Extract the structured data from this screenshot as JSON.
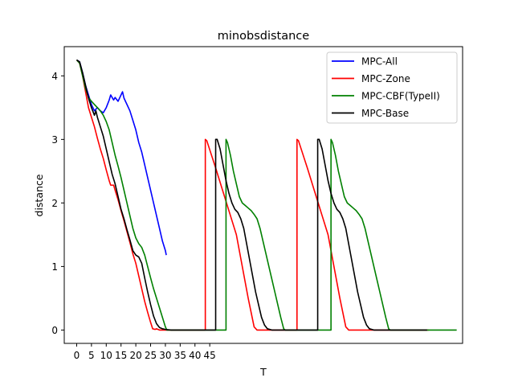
{
  "chart_data": {
    "type": "line",
    "title": "minobsdistance",
    "xlabel": "T",
    "ylabel": "distance",
    "xlim": [
      -4.2,
      130.5
    ],
    "ylim": [
      -0.21,
      4.46
    ],
    "x_ticks": [
      0,
      5,
      10,
      15,
      20,
      25,
      30,
      35,
      40,
      45
    ],
    "x_tick_labels": [
      "0",
      "5",
      "10",
      "15",
      "20",
      "25",
      "30",
      "35",
      "40",
      "45"
    ],
    "y_ticks": [
      0,
      1,
      2,
      3,
      4
    ],
    "y_tick_labels": [
      "0",
      "1",
      "2",
      "3",
      "4"
    ],
    "grid": false,
    "legend_position": "top-right",
    "series": [
      {
        "name": "MPC-All",
        "color": "#0000ff",
        "points": [
          [
            0,
            4.25
          ],
          [
            1,
            4.22
          ],
          [
            2,
            4.05
          ],
          [
            3,
            3.85
          ],
          [
            4,
            3.7
          ],
          [
            5,
            3.55
          ],
          [
            6,
            3.45
          ],
          [
            7,
            3.5
          ],
          [
            8,
            3.45
          ],
          [
            9,
            3.42
          ],
          [
            10,
            3.5
          ],
          [
            11,
            3.62
          ],
          [
            11.5,
            3.7
          ],
          [
            12.5,
            3.62
          ],
          [
            13,
            3.66
          ],
          [
            14,
            3.6
          ],
          [
            15,
            3.7
          ],
          [
            15.5,
            3.75
          ],
          [
            16,
            3.65
          ],
          [
            17,
            3.55
          ],
          [
            18,
            3.45
          ],
          [
            19,
            3.3
          ],
          [
            20,
            3.15
          ],
          [
            21,
            2.95
          ],
          [
            22,
            2.8
          ],
          [
            23,
            2.6
          ],
          [
            24,
            2.4
          ],
          [
            25,
            2.2
          ],
          [
            26,
            2.0
          ],
          [
            27,
            1.8
          ],
          [
            28,
            1.6
          ],
          [
            29,
            1.4
          ],
          [
            30,
            1.25
          ],
          [
            30.3,
            1.18
          ]
        ]
      },
      {
        "name": "MPC-Zone",
        "color": "#ff0000",
        "points": [
          [
            0,
            4.25
          ],
          [
            1,
            4.2
          ],
          [
            2,
            4.0
          ],
          [
            3,
            3.75
          ],
          [
            4,
            3.5
          ],
          [
            5,
            3.35
          ],
          [
            6,
            3.2
          ],
          [
            7,
            3.02
          ],
          [
            8,
            2.85
          ],
          [
            9,
            2.7
          ],
          [
            10,
            2.52
          ],
          [
            11,
            2.35
          ],
          [
            11.5,
            2.28
          ],
          [
            12.5,
            2.28
          ],
          [
            13,
            2.2
          ],
          [
            14,
            2.05
          ],
          [
            15,
            1.88
          ],
          [
            16,
            1.72
          ],
          [
            17,
            1.55
          ],
          [
            18,
            1.38
          ],
          [
            19,
            1.2
          ],
          [
            20,
            1.05
          ],
          [
            21,
            0.85
          ],
          [
            22,
            0.65
          ],
          [
            23,
            0.45
          ],
          [
            24,
            0.28
          ],
          [
            25,
            0.12
          ],
          [
            25.7,
            0.02
          ],
          [
            26.5,
            0.01
          ],
          [
            27,
            0.02
          ],
          [
            28,
            0.0
          ],
          [
            43.5,
            0.0
          ],
          [
            43.5,
            3.0
          ],
          [
            44,
            2.98
          ],
          [
            47,
            2.55
          ],
          [
            50,
            2.1
          ],
          [
            52,
            1.8
          ],
          [
            54,
            1.5
          ],
          [
            56,
            1.0
          ],
          [
            58,
            0.5
          ],
          [
            60,
            0.05
          ],
          [
            61,
            0.0
          ],
          [
            74.5,
            0.0
          ],
          [
            74.5,
            3.0
          ],
          [
            75,
            2.98
          ],
          [
            78,
            2.55
          ],
          [
            81,
            2.1
          ],
          [
            83,
            1.8
          ],
          [
            85,
            1.5
          ],
          [
            87,
            1.0
          ],
          [
            89,
            0.5
          ],
          [
            91,
            0.05
          ],
          [
            92,
            0.0
          ],
          [
            119,
            0.0
          ]
        ]
      },
      {
        "name": "MPC-CBF(TypeII)",
        "color": "#008000",
        "points": [
          [
            0,
            4.25
          ],
          [
            1,
            4.2
          ],
          [
            2,
            4.0
          ],
          [
            3,
            3.8
          ],
          [
            4,
            3.66
          ],
          [
            5,
            3.6
          ],
          [
            6,
            3.55
          ],
          [
            7,
            3.5
          ],
          [
            8,
            3.45
          ],
          [
            9,
            3.38
          ],
          [
            10,
            3.28
          ],
          [
            11,
            3.15
          ],
          [
            12,
            2.95
          ],
          [
            13,
            2.75
          ],
          [
            14,
            2.58
          ],
          [
            15,
            2.4
          ],
          [
            16,
            2.2
          ],
          [
            17,
            2.0
          ],
          [
            18,
            1.8
          ],
          [
            19,
            1.6
          ],
          [
            20,
            1.45
          ],
          [
            21,
            1.36
          ],
          [
            22,
            1.3
          ],
          [
            23,
            1.18
          ],
          [
            24,
            1.0
          ],
          [
            25,
            0.82
          ],
          [
            26,
            0.65
          ],
          [
            27,
            0.5
          ],
          [
            28,
            0.35
          ],
          [
            29,
            0.2
          ],
          [
            30,
            0.05
          ],
          [
            30.5,
            0.0
          ],
          [
            50.5,
            0.0
          ],
          [
            50.5,
            3.0
          ],
          [
            51,
            2.95
          ],
          [
            52,
            2.75
          ],
          [
            53,
            2.5
          ],
          [
            54,
            2.3
          ],
          [
            55,
            2.1
          ],
          [
            56,
            2.0
          ],
          [
            57,
            1.96
          ],
          [
            58,
            1.92
          ],
          [
            59,
            1.88
          ],
          [
            60,
            1.82
          ],
          [
            61,
            1.75
          ],
          [
            62,
            1.6
          ],
          [
            63,
            1.4
          ],
          [
            64,
            1.2
          ],
          [
            65,
            1.0
          ],
          [
            66,
            0.8
          ],
          [
            67,
            0.6
          ],
          [
            68,
            0.4
          ],
          [
            69,
            0.2
          ],
          [
            70,
            0.02
          ],
          [
            70.5,
            0.0
          ],
          [
            86,
            0.0
          ],
          [
            86,
            3.0
          ],
          [
            86.5,
            2.95
          ],
          [
            87.5,
            2.75
          ],
          [
            88.5,
            2.5
          ],
          [
            89.5,
            2.3
          ],
          [
            90.5,
            2.1
          ],
          [
            91.5,
            2.0
          ],
          [
            92.5,
            1.96
          ],
          [
            93.5,
            1.92
          ],
          [
            94.5,
            1.88
          ],
          [
            95.5,
            1.82
          ],
          [
            96.5,
            1.75
          ],
          [
            97.5,
            1.6
          ],
          [
            98.5,
            1.4
          ],
          [
            99.5,
            1.2
          ],
          [
            100.5,
            1.0
          ],
          [
            101.5,
            0.8
          ],
          [
            102.5,
            0.6
          ],
          [
            103.5,
            0.4
          ],
          [
            104.5,
            0.2
          ],
          [
            105.5,
            0.02
          ],
          [
            106,
            0.0
          ],
          [
            128.5,
            0.0
          ]
        ]
      },
      {
        "name": "MPC-Base",
        "color": "#000000",
        "points": [
          [
            0,
            4.25
          ],
          [
            1,
            4.22
          ],
          [
            2,
            4.05
          ],
          [
            3,
            3.85
          ],
          [
            4,
            3.65
          ],
          [
            5,
            3.5
          ],
          [
            6,
            3.38
          ],
          [
            6.5,
            3.45
          ],
          [
            7,
            3.35
          ],
          [
            8,
            3.2
          ],
          [
            9,
            3.05
          ],
          [
            10,
            2.85
          ],
          [
            11,
            2.65
          ],
          [
            12,
            2.45
          ],
          [
            13,
            2.3
          ],
          [
            14,
            2.1
          ],
          [
            15,
            1.9
          ],
          [
            16,
            1.75
          ],
          [
            17,
            1.58
          ],
          [
            18,
            1.42
          ],
          [
            19,
            1.25
          ],
          [
            20,
            1.18
          ],
          [
            21,
            1.15
          ],
          [
            22,
            1.05
          ],
          [
            23,
            0.82
          ],
          [
            24,
            0.6
          ],
          [
            25,
            0.4
          ],
          [
            26,
            0.22
          ],
          [
            27,
            0.1
          ],
          [
            28,
            0.04
          ],
          [
            29,
            0.02
          ],
          [
            30,
            0.01
          ],
          [
            32,
            0.0
          ],
          [
            47,
            0.0
          ],
          [
            47,
            3.0
          ],
          [
            47.5,
            3.0
          ],
          [
            48.5,
            2.85
          ],
          [
            49.5,
            2.6
          ],
          [
            50.5,
            2.35
          ],
          [
            51.5,
            2.15
          ],
          [
            52.5,
            2.0
          ],
          [
            53.5,
            1.9
          ],
          [
            54.5,
            1.85
          ],
          [
            55.5,
            1.75
          ],
          [
            56.5,
            1.6
          ],
          [
            57.5,
            1.35
          ],
          [
            58.5,
            1.1
          ],
          [
            59.5,
            0.85
          ],
          [
            60.5,
            0.6
          ],
          [
            61.5,
            0.4
          ],
          [
            62.5,
            0.2
          ],
          [
            63.5,
            0.08
          ],
          [
            64.5,
            0.02
          ],
          [
            66,
            0.0
          ],
          [
            81.5,
            0.0
          ],
          [
            81.5,
            3.0
          ],
          [
            82,
            3.0
          ],
          [
            83,
            2.85
          ],
          [
            84,
            2.6
          ],
          [
            85,
            2.35
          ],
          [
            86,
            2.15
          ],
          [
            87,
            2.0
          ],
          [
            88,
            1.9
          ],
          [
            89,
            1.85
          ],
          [
            90,
            1.75
          ],
          [
            91,
            1.6
          ],
          [
            92,
            1.35
          ],
          [
            93,
            1.1
          ],
          [
            94,
            0.85
          ],
          [
            95,
            0.6
          ],
          [
            96,
            0.4
          ],
          [
            97,
            0.2
          ],
          [
            98,
            0.08
          ],
          [
            99,
            0.02
          ],
          [
            100.5,
            0.0
          ],
          [
            118.5,
            0.0
          ]
        ]
      }
    ]
  }
}
